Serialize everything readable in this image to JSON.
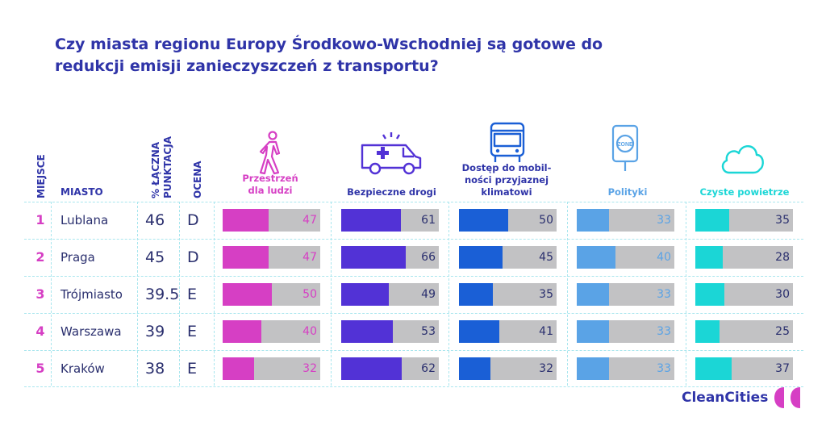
{
  "title": "Czy miasta regionu Europy Środkowo-Wschodniej są gotowe do redukcji emisji zanieczyszczeń z transportu?",
  "headers": {
    "rank": "MIEJSCE",
    "city": "MIASTO",
    "score_line1": "% ŁĄCZNA",
    "score_line2": "PUNKTACJA",
    "grade": "OCENA"
  },
  "logo": "CleanCities",
  "colors": {
    "space": "#d63fc4",
    "safety": "#5232d6",
    "mobility": "#1a5fd6",
    "policy": "#5aa3e6",
    "air": "#1bd6d6"
  },
  "chart_data": {
    "type": "bar",
    "categories": [
      "Lublana",
      "Praga",
      "Trójmiasto",
      "Warszawa",
      "Kraków"
    ],
    "ranks": [
      "1",
      "2",
      "3",
      "4",
      "5"
    ],
    "total_score": [
      "46",
      "45",
      "39.5",
      "39",
      "38"
    ],
    "grades": [
      "D",
      "D",
      "E",
      "E",
      "E"
    ],
    "ylim": [
      0,
      100
    ],
    "series": [
      {
        "name": "Przestrzeń dla ludzi",
        "icon": "pedestrian-icon",
        "values": [
          47,
          47,
          50,
          40,
          32
        ]
      },
      {
        "name": "Bezpieczne drogi",
        "icon": "ambulance-icon",
        "values": [
          61,
          66,
          49,
          53,
          62
        ]
      },
      {
        "name": "Dostęp do mobil-ności przyjaznej klimatowi",
        "icon": "bus-icon",
        "values": [
          50,
          45,
          35,
          41,
          32
        ]
      },
      {
        "name": "Polityki",
        "icon": "zone-sign-icon",
        "values": [
          33,
          40,
          33,
          33,
          33
        ]
      },
      {
        "name": "Czyste powietrze",
        "icon": "cloud-icon",
        "values": [
          35,
          28,
          30,
          25,
          37
        ]
      }
    ]
  }
}
